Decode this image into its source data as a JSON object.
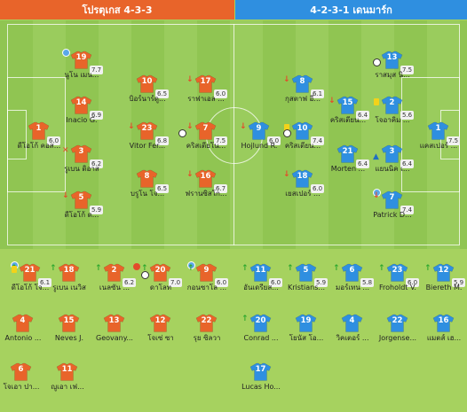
{
  "header": {
    "home_title": "โปรตุเกส 4-3-3",
    "away_title": "4-2-3-1 เดนมาร์ก"
  },
  "colors": {
    "home": "#e8642a",
    "away": "#2f8fe0",
    "pitch": "#90c552"
  },
  "home_lineup": [
    {
      "id": "h-19",
      "num": "19",
      "name": "นูโน เมน...",
      "rating": "7.7",
      "events": [
        "star"
      ]
    },
    {
      "id": "h-14",
      "num": "14",
      "name": "Inacio G.",
      "rating": "6.9",
      "events": []
    },
    {
      "id": "h-3",
      "num": "3",
      "name": "รูเบน ดิอาส",
      "rating": "6.2",
      "events": [
        "xmark"
      ]
    },
    {
      "id": "h-5",
      "num": "5",
      "name": "ดีโอโก้ ด...",
      "rating": "5.9",
      "events": [
        "down"
      ]
    },
    {
      "id": "h-1",
      "num": "1",
      "name": "ดีโอโก้ คอส...",
      "rating": "6.0",
      "events": []
    },
    {
      "id": "h-10",
      "num": "10",
      "name": "บิอร์นาร์ดู...",
      "rating": "6.5",
      "events": []
    },
    {
      "id": "h-23",
      "num": "23",
      "name": "Vitor Fer...",
      "rating": "6.8",
      "events": [
        "down"
      ]
    },
    {
      "id": "h-8",
      "num": "8",
      "name": "บรูโน โจ...",
      "rating": "6.5",
      "events": []
    },
    {
      "id": "h-17",
      "num": "17",
      "name": "ราฟาเอล ...",
      "rating": "6.0",
      "events": [
        "down"
      ]
    },
    {
      "id": "h-7",
      "num": "7",
      "name": "คริสเตียโน...",
      "rating": "7.5",
      "events": [
        "ball2",
        "down"
      ]
    },
    {
      "id": "h-16",
      "num": "16",
      "name": "ฟรานซิสโก...",
      "rating": "6.7",
      "events": [
        "down"
      ]
    }
  ],
  "away_lineup": [
    {
      "id": "a-13",
      "num": "13",
      "name": "ราสมุส นิ...",
      "rating": "7.5",
      "events": [
        "ball"
      ]
    },
    {
      "id": "a-2",
      "num": "2",
      "name": "โจอาคิม ...",
      "rating": "5.6",
      "events": [
        "ycard"
      ]
    },
    {
      "id": "a-3",
      "num": "3",
      "name": "แยนนิค เ...",
      "rating": "6.4",
      "events": [
        "assist"
      ]
    },
    {
      "id": "a-7",
      "num": "7",
      "name": "Patrick D...",
      "rating": "7.4",
      "events": [
        "star",
        "down"
      ]
    },
    {
      "id": "a-1",
      "num": "1",
      "name": "แคสเปอร์ ...",
      "rating": "7.5",
      "events": []
    },
    {
      "id": "a-8",
      "num": "8",
      "name": "กุสตาฟ อี...",
      "rating": "6.1",
      "events": [
        "down"
      ]
    },
    {
      "id": "a-10",
      "num": "10",
      "name": "คริสเตียน...",
      "rating": "7.4",
      "events": [
        "ycard",
        "ball"
      ]
    },
    {
      "id": "a-15",
      "num": "15",
      "name": "คริสเตียน...",
      "rating": "6.4",
      "events": [
        "down"
      ]
    },
    {
      "id": "a-21",
      "num": "21",
      "name": "Morten ...",
      "rating": "6.4",
      "events": []
    },
    {
      "id": "a-18",
      "num": "18",
      "name": "เยสเปอร์ ...",
      "rating": "6.0",
      "events": [
        "down"
      ]
    },
    {
      "id": "a-9",
      "num": "9",
      "name": "Hojlund R.",
      "rating": "6.0",
      "events": [
        "down"
      ]
    }
  ],
  "home_bench": [
    {
      "id": "hb-21",
      "num": "21",
      "name": "ดีโอโก้ โจ...",
      "rating": "6.1",
      "events": [
        "star",
        "up",
        "ycard"
      ]
    },
    {
      "id": "hb-18",
      "num": "18",
      "name": "รูเบน เนวิส",
      "rating": "",
      "events": [
        "up"
      ]
    },
    {
      "id": "hb-2",
      "num": "2",
      "name": "เนลซัน ...",
      "rating": "6.2",
      "events": [
        "up"
      ]
    },
    {
      "id": "hb-20",
      "num": "20",
      "name": "ดาโลท",
      "rating": "7.0",
      "events": [
        "og",
        "ball",
        "up"
      ]
    },
    {
      "id": "hb-9",
      "num": "9",
      "name": "กอนซาโล ...",
      "rating": "6.0",
      "events": [
        "star",
        "up"
      ]
    },
    {
      "id": "hb-4",
      "num": "4",
      "name": "Antonio ...",
      "rating": "",
      "events": []
    },
    {
      "id": "hb-15",
      "num": "15",
      "name": "Neves J.",
      "rating": "",
      "events": []
    },
    {
      "id": "hb-13",
      "num": "13",
      "name": "Geovany...",
      "rating": "",
      "events": []
    },
    {
      "id": "hb-12",
      "num": "12",
      "name": "โจเซ่ ซา",
      "rating": "",
      "events": []
    },
    {
      "id": "hb-22",
      "num": "22",
      "name": "รุย ซิลวา",
      "rating": "",
      "events": []
    },
    {
      "id": "hb-6",
      "num": "6",
      "name": "โจเอา ปา...",
      "rating": "",
      "events": []
    },
    {
      "id": "hb-11",
      "num": "11",
      "name": "ญูเอา เฟ...",
      "rating": "",
      "events": []
    }
  ],
  "away_bench": [
    {
      "id": "ab-11",
      "num": "11",
      "name": "อันเดรียส...",
      "rating": "6.0",
      "events": [
        "up"
      ]
    },
    {
      "id": "ab-5",
      "num": "5",
      "name": "Kristians...",
      "rating": "5.9",
      "events": [
        "up"
      ]
    },
    {
      "id": "ab-6",
      "num": "6",
      "name": "มอร์เทน ...",
      "rating": "5.8",
      "events": [
        "up"
      ]
    },
    {
      "id": "ab-23",
      "num": "23",
      "name": "Froholdt V.",
      "rating": "6.0",
      "events": [
        "up"
      ]
    },
    {
      "id": "ab-12",
      "num": "12",
      "name": "Biereth M.",
      "rating": "5.9",
      "events": [
        "up"
      ]
    },
    {
      "id": "ab-20",
      "num": "20",
      "name": "Conrad ...",
      "rating": "",
      "events": [
        "up"
      ]
    },
    {
      "id": "ab-19",
      "num": "19",
      "name": "โยนัส โอ...",
      "rating": "",
      "events": []
    },
    {
      "id": "ab-4",
      "num": "4",
      "name": "วิคเตอร์ ...",
      "rating": "",
      "events": []
    },
    {
      "id": "ab-22",
      "num": "22",
      "name": "Jorgense...",
      "rating": "",
      "events": []
    },
    {
      "id": "ab-16",
      "num": "16",
      "name": "แมตส์ เฮ...",
      "rating": "",
      "events": []
    },
    {
      "id": "ab-17",
      "num": "17",
      "name": "Lucas Ho...",
      "rating": "",
      "events": []
    }
  ]
}
